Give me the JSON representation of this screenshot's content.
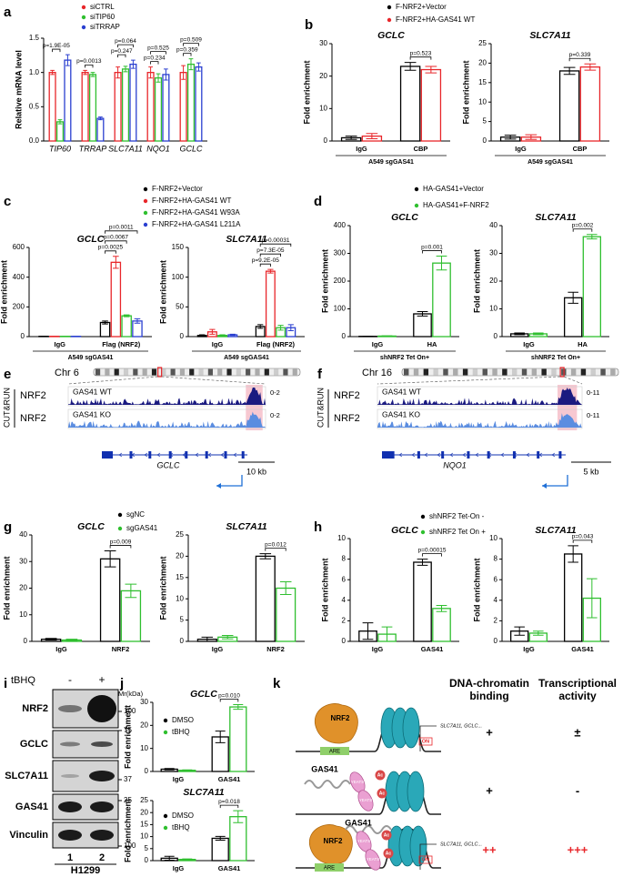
{
  "chart_data": [
    {
      "panel": "a",
      "type": "bar",
      "series": [
        {
          "name": "siCTRL",
          "color": "#e8262a"
        },
        {
          "name": "siTIP60",
          "color": "#2fbf2f"
        },
        {
          "name": "siTRRAP",
          "color": "#2a3fd0"
        }
      ],
      "plots": [
        {
          "ylabel": "Relative mRNA  level",
          "categories": [
            "TIP60",
            "TRRAP",
            "SLC7A11",
            "NQO1",
            "GCLC"
          ],
          "series": [
            {
              "values": [
                1,
                1,
                1,
                1,
                1
              ],
              "errors": [
                0.03,
                0.03,
                0.08,
                0.08,
                0.1
              ]
            },
            {
              "values": [
                0.28,
                0.97,
                1.05,
                0.92,
                1.12
              ],
              "errors": [
                0.03,
                0.03,
                0.04,
                0.06,
                0.08
              ]
            },
            {
              "values": [
                1.18,
                0.33,
                1.12,
                0.97,
                1.08
              ],
              "errors": [
                0.08,
                0.02,
                0.06,
                0.08,
                0.06
              ]
            }
          ],
          "ylim": [
            0,
            1.5
          ],
          "yticks": [
            {
              "value": 0,
              "label": "0.0"
            },
            0.5,
            {
              "value": 1,
              "label": "1.0"
            },
            1.5
          ],
          "pvalues": [
            [
              "p=1.9E-05"
            ],
            [
              "p=0.0013"
            ],
            [
              "p=0.247",
              "p=0.064"
            ],
            [
              "p=0.234",
              "p=0.525"
            ],
            [
              "p=0.359",
              "p=0.509"
            ]
          ]
        }
      ]
    },
    {
      "panel": "b",
      "type": "bar",
      "series": [
        {
          "name": "F-NRF2+Vector",
          "color": "#000000"
        },
        {
          "name": "F-NRF2+HA-GAS41 WT",
          "color": "#e8262a"
        }
      ],
      "plots": [
        {
          "title": "GCLC",
          "ylabel": "Fold enrichment",
          "xlabel": "A549 sgGAS41",
          "categories": [
            "IgG",
            "CBP"
          ],
          "series": [
            {
              "values": [
                1,
                23
              ],
              "errors": [
                0.5,
                1.2
              ]
            },
            {
              "values": [
                1.5,
                22
              ],
              "errors": [
                0.8,
                1
              ]
            }
          ],
          "ylim": [
            0,
            30
          ],
          "yticks": [
            0,
            10,
            20,
            30
          ],
          "pvalues": [
            [],
            [
              "p=0.523"
            ]
          ]
        },
        {
          "title": "SLC7A11",
          "ylabel": "Fold enrichment",
          "xlabel": "A549 sgGAS41",
          "categories": [
            "IgG",
            "CBP"
          ],
          "series": [
            {
              "values": [
                1,
                18
              ],
              "errors": [
                0.5,
                0.9
              ]
            },
            {
              "values": [
                1,
                19
              ],
              "errors": [
                0.6,
                0.8
              ]
            }
          ],
          "ylim": [
            0,
            25
          ],
          "yticks": [
            0,
            5,
            10,
            15,
            20,
            25
          ],
          "pvalues": [
            [],
            [
              "p=0.339"
            ]
          ]
        }
      ]
    },
    {
      "panel": "c",
      "type": "bar",
      "series": [
        {
          "name": "F-NRF2+Vector",
          "color": "#000000"
        },
        {
          "name": "F-NRF2+HA-GAS41 WT",
          "color": "#e8262a"
        },
        {
          "name": "F-NRF2+HA-GAS41 W93A",
          "color": "#2fbf2f"
        },
        {
          "name": "F-NRF2+HA-GAS41 L211A",
          "color": "#2a3fd0"
        }
      ],
      "plots": [
        {
          "title": "GCLC",
          "ylabel": "Fold enrichment",
          "xlabel": "A549 sgGAS41",
          "categories": [
            "IgG",
            "Flag (NRF2)"
          ],
          "series": [
            {
              "values": [
                2,
                95
              ],
              "errors": [
                1,
                10
              ]
            },
            {
              "values": [
                2,
                500
              ],
              "errors": [
                1,
                40
              ]
            },
            {
              "values": [
                2,
                140
              ],
              "errors": [
                1,
                6
              ]
            },
            {
              "values": [
                2,
                105
              ],
              "errors": [
                1,
                15
              ]
            }
          ],
          "ylim": [
            0,
            600
          ],
          "yticks": [
            0,
            200,
            400,
            600
          ],
          "pvalues": [
            [],
            [
              "p=0.0025",
              "p=0.0067",
              "p=0.0011"
            ]
          ]
        },
        {
          "title": "SLC7A11",
          "ylabel": "Fold enrichment",
          "xlabel": "A549 sgGAS41",
          "categories": [
            "IgG",
            "Flag (NRF2)"
          ],
          "series": [
            {
              "values": [
                2,
                17
              ],
              "errors": [
                1,
                3
              ]
            },
            {
              "values": [
                8,
                110
              ],
              "errors": [
                4,
                3
              ]
            },
            {
              "values": [
                2,
                15
              ],
              "errors": [
                1,
                4
              ]
            },
            {
              "values": [
                3,
                15
              ],
              "errors": [
                1,
                5
              ]
            }
          ],
          "ylim": [
            0,
            150
          ],
          "yticks": [
            0,
            50,
            100,
            150
          ],
          "pvalues": [
            [],
            [
              "p=9.2E-05",
              "p=7.3E-05",
              "p=0.00031"
            ]
          ]
        }
      ]
    },
    {
      "panel": "d",
      "type": "bar",
      "series": [
        {
          "name": "HA-GAS41+Vector",
          "color": "#000000"
        },
        {
          "name": "HA-GAS41+F-NRF2",
          "color": "#2fbf2f"
        }
      ],
      "plots": [
        {
          "title": "GCLC",
          "ylabel": "Fold enrichment",
          "xlabel": "shNRF2 Tet On+",
          "categories": [
            "IgG",
            "HA"
          ],
          "series": [
            {
              "values": [
                1,
                82
              ],
              "errors": [
                0.5,
                8
              ]
            },
            {
              "values": [
                2,
                265
              ],
              "errors": [
                1,
                25
              ]
            }
          ],
          "ylim": [
            0,
            400
          ],
          "yticks": [
            0,
            100,
            200,
            300,
            400
          ],
          "pvalues": [
            [],
            [
              "p=0.001"
            ]
          ]
        },
        {
          "title": "SLC7A11",
          "ylabel": "Fold enrichment",
          "xlabel": "shNRF2 Tet On+",
          "categories": [
            "IgG",
            "HA"
          ],
          "series": [
            {
              "values": [
                1,
                14
              ],
              "errors": [
                0.3,
                2
              ]
            },
            {
              "values": [
                1,
                36
              ],
              "errors": [
                0.3,
                0.8
              ]
            }
          ],
          "ylim": [
            0,
            40
          ],
          "yticks": [
            0,
            10,
            20,
            30,
            40
          ],
          "pvalues": [
            [],
            [
              "p=0.002"
            ]
          ]
        }
      ]
    },
    {
      "panel": "g",
      "type": "bar",
      "series": [
        {
          "name": "sgNC",
          "color": "#000000"
        },
        {
          "name": "sgGAS41",
          "color": "#2fbf2f"
        }
      ],
      "plots": [
        {
          "title": "GCLC",
          "ylabel": "Fold enrichment",
          "categories": [
            "IgG",
            "NRF2"
          ],
          "series": [
            {
              "values": [
                0.8,
                31
              ],
              "errors": [
                0.3,
                3
              ]
            },
            {
              "values": [
                0.5,
                19
              ],
              "errors": [
                0.3,
                2.5
              ]
            }
          ],
          "ylim": [
            0,
            40
          ],
          "yticks": [
            0,
            10,
            20,
            30,
            40
          ],
          "pvalues": [
            [],
            [
              "p=0.009"
            ]
          ]
        },
        {
          "title": "SLC7A11",
          "ylabel": "Fold enrichment",
          "categories": [
            "IgG",
            "NRF2"
          ],
          "series": [
            {
              "values": [
                0.5,
                20
              ],
              "errors": [
                0.5,
                0.6
              ]
            },
            {
              "values": [
                1,
                12.5
              ],
              "errors": [
                0.4,
                1.5
              ]
            }
          ],
          "ylim": [
            0,
            25
          ],
          "yticks": [
            0,
            5,
            10,
            15,
            20,
            25
          ],
          "pvalues": [
            [],
            [
              "p=0.012"
            ]
          ]
        }
      ]
    },
    {
      "panel": "h",
      "type": "bar",
      "series": [
        {
          "name": "shNRF2 Tet-On -",
          "color": "#000000"
        },
        {
          "name": "shNRF2 Tet On +",
          "color": "#2fbf2f"
        }
      ],
      "plots": [
        {
          "title": "GCLC",
          "ylabel": "Fold enrichment",
          "categories": [
            "IgG",
            "GAS41"
          ],
          "series": [
            {
              "values": [
                1,
                7.7
              ],
              "errors": [
                0.8,
                0.3
              ]
            },
            {
              "values": [
                0.7,
                3.2
              ],
              "errors": [
                0.7,
                0.3
              ]
            }
          ],
          "ylim": [
            0,
            10
          ],
          "yticks": [
            0,
            2,
            4,
            6,
            8,
            10
          ],
          "pvalues": [
            [],
            [
              "p=0.00015"
            ]
          ]
        },
        {
          "title": "SLC7A11",
          "ylabel": "Fold enrichment",
          "categories": [
            "IgG",
            "GAS41"
          ],
          "series": [
            {
              "values": [
                1,
                8.5
              ],
              "errors": [
                0.4,
                0.8
              ]
            },
            {
              "values": [
                0.8,
                4.2
              ],
              "errors": [
                0.2,
                1.9
              ]
            }
          ],
          "ylim": [
            0,
            10
          ],
          "yticks": [
            0,
            2,
            4,
            6,
            8,
            10
          ],
          "pvalues": [
            [],
            [
              "p=0.043"
            ]
          ]
        }
      ]
    },
    {
      "panel": "j",
      "type": "bar",
      "series": [
        {
          "name": "DMSO",
          "color": "#000000"
        },
        {
          "name": "tBHQ",
          "color": "#2fbf2f"
        }
      ],
      "plots": [
        {
          "title": "GCLC",
          "ylabel": "Fold enrichment",
          "categories": [
            "IgG",
            "GAS41"
          ],
          "series": [
            {
              "values": [
                1,
                15
              ],
              "errors": [
                0.3,
                2.5
              ]
            },
            {
              "values": [
                0.5,
                28
              ],
              "errors": [
                0.2,
                1
              ]
            }
          ],
          "ylim": [
            0,
            30
          ],
          "yticks": [
            0,
            10,
            20,
            30
          ],
          "pvalues": [
            [],
            [
              "p=0.010"
            ]
          ]
        },
        {
          "title": "SLC7A11",
          "ylabel": "Fold enrichment",
          "categories": [
            "IgG",
            "GAS41"
          ],
          "series": [
            {
              "values": [
                1,
                9.3
              ],
              "errors": [
                0.8,
                0.8
              ]
            },
            {
              "values": [
                0.5,
                18.3
              ],
              "errors": [
                0.2,
                2.5
              ]
            }
          ],
          "ylim": [
            0,
            25
          ],
          "yticks": [
            0,
            5,
            10,
            15,
            20,
            25
          ],
          "pvalues": [
            [],
            [
              "p=0.018"
            ]
          ]
        }
      ]
    }
  ],
  "tracks": [
    {
      "panel": "e",
      "chromosome": "Chr 6",
      "assay": "CUT&RUN",
      "tracks": [
        {
          "target": "NRF2",
          "sample": "GAS41 WT",
          "range": "0-2"
        },
        {
          "target": "NRF2",
          "sample": "GAS41 KO",
          "range": "0-2"
        }
      ],
      "gene": "GCLC",
      "scale": "10 kb"
    },
    {
      "panel": "f",
      "chromosome": "Chr 16",
      "assay": "CUT&RUN",
      "tracks": [
        {
          "target": "NRF2",
          "sample": "GAS41 WT",
          "range": "0-11"
        },
        {
          "target": "NRF2",
          "sample": "GAS41 KO",
          "range": "0-11"
        }
      ],
      "gene": "NQO1",
      "scale": "5 kb"
    }
  ],
  "blot": {
    "panel": "i",
    "treatment": "tBHQ",
    "lanes": [
      "-",
      "+"
    ],
    "marker_unit": "Mr(kDa)",
    "rows": [
      {
        "protein": "NRF2",
        "marker": "100"
      },
      {
        "protein": "GCLC",
        "marker": "75"
      },
      {
        "protein": "SLC7A11",
        "marker": "37"
      },
      {
        "protein": "GAS41",
        "marker": "25"
      },
      {
        "protein": "Vinculin",
        "marker": "100"
      }
    ],
    "lane_numbers": [
      "1",
      "2"
    ],
    "cell_line": "H1299"
  },
  "model": {
    "panel": "k",
    "columns": [
      "DNA-chromatin binding",
      "Transcriptional activity"
    ],
    "rows": [
      {
        "labels": [
          "NRF2",
          "ARE",
          "SLC7A11, GCLC...",
          "ON"
        ],
        "binding": "+",
        "activity": "±",
        "color": "#000000"
      },
      {
        "labels": [
          "GAS41",
          "YEATS",
          "YEATS",
          "Ac",
          "Ac"
        ],
        "binding": "+",
        "activity": "-",
        "color": "#000000"
      },
      {
        "labels": [
          "GAS41",
          "NRF2",
          "ARE",
          "YEATS",
          "YEATS",
          "Ac",
          "Ac",
          "SLC7A11, GCLC...",
          "ON"
        ],
        "binding": "++",
        "activity": "+++",
        "color": "#e8262a"
      }
    ]
  }
}
